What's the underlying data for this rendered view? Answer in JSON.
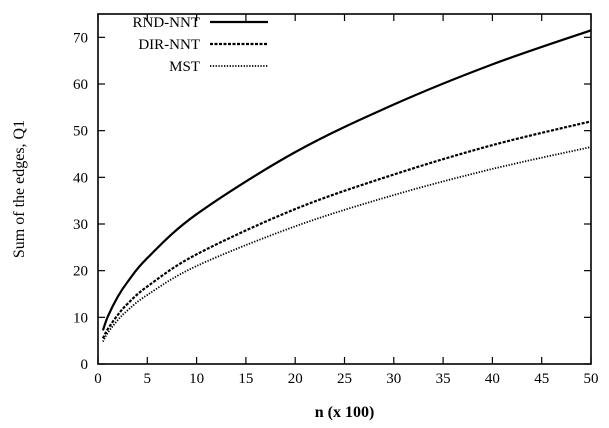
{
  "chart_data": {
    "type": "line",
    "title": "",
    "xlabel": "n (x 100)",
    "ylabel": "Sum of the edges, Q1",
    "xlim": [
      0,
      50
    ],
    "ylim": [
      0,
      75
    ],
    "xticks": [
      0,
      5,
      10,
      15,
      20,
      25,
      30,
      35,
      40,
      45,
      50
    ],
    "yticks": [
      0,
      10,
      20,
      30,
      40,
      50,
      60,
      70
    ],
    "grid": false,
    "legend_position": "top-left",
    "series": [
      {
        "name": "RND-NNT",
        "style": "solid",
        "color": "#000000",
        "x": [
          0.5,
          1,
          2,
          3,
          5,
          10,
          20,
          30,
          40,
          50
        ],
        "y": [
          7.2,
          10.2,
          14.4,
          17.6,
          22.7,
          32.1,
          45.4,
          55.6,
          64.2,
          71.5
        ]
      },
      {
        "name": "DIR-NNT",
        "style": "dashed",
        "color": "#000000",
        "x": [
          0.5,
          1,
          2,
          3,
          5,
          10,
          20,
          30,
          40,
          50
        ],
        "y": [
          5.5,
          7.5,
          10.5,
          12.9,
          16.6,
          23.5,
          33.2,
          40.6,
          46.9,
          52.0
        ]
      },
      {
        "name": "MST",
        "style": "dotted",
        "color": "#000000",
        "x": [
          0.5,
          1,
          2,
          3,
          5,
          10,
          20,
          30,
          40,
          50
        ],
        "y": [
          4.8,
          6.7,
          9.4,
          11.5,
          14.8,
          21.0,
          29.5,
          36.2,
          41.8,
          46.5
        ]
      }
    ]
  }
}
